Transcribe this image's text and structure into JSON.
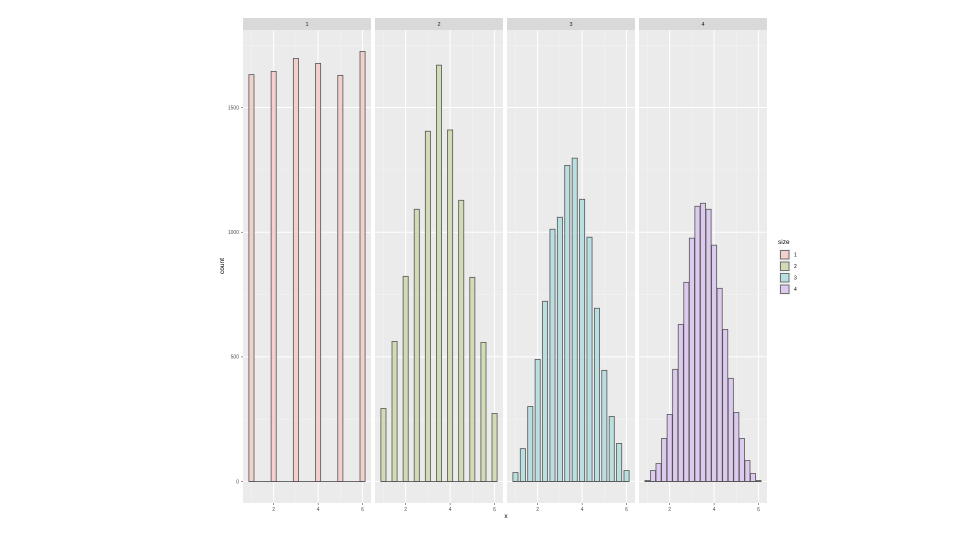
{
  "chart_data": {
    "type": "bar",
    "subtype": "faceted histogram",
    "xlabel": "x",
    "ylabel": "count",
    "ylim": [
      -86,
      1811
    ],
    "xlim": [
      0.62,
      6.38
    ],
    "x_ticks": [
      "2",
      "4",
      "6"
    ],
    "x_tick_values": [
      2,
      4,
      6
    ],
    "y_ticks": [
      "0",
      "500",
      "1000",
      "1500"
    ],
    "y_tick_values": [
      0,
      500,
      1000,
      1500
    ],
    "grid": true,
    "legend": {
      "title": "size",
      "position": "right",
      "entries": [
        "1",
        "2",
        "3",
        "4"
      ]
    },
    "panels": [
      {
        "strip": "1",
        "color": "#F8766D",
        "fill": "#f1d0cd",
        "x": [
          1,
          2,
          3,
          4,
          5,
          6
        ],
        "counts": [
          1632,
          1645,
          1697,
          1677,
          1629,
          1725
        ]
      },
      {
        "strip": "2",
        "color": "#7CAE00",
        "fill": "#d1dcb6",
        "x": [
          1,
          1.5,
          2,
          2.5,
          3,
          3.5,
          4,
          4.5,
          5,
          5.5,
          6
        ],
        "counts": [
          293,
          562,
          823,
          1092,
          1405,
          1670,
          1410,
          1128,
          819,
          558,
          273
        ]
      },
      {
        "strip": "3",
        "color": "#00BFC4",
        "fill": "#b9dfe0",
        "x": [
          1,
          1.333,
          1.667,
          2,
          2.333,
          2.667,
          3,
          3.333,
          3.667,
          4,
          4.333,
          4.667,
          5,
          5.333,
          5.667,
          6
        ],
        "counts": [
          36,
          132,
          301,
          490,
          723,
          1012,
          1060,
          1268,
          1297,
          1132,
          980,
          695,
          446,
          261,
          153,
          44
        ]
      },
      {
        "strip": "4",
        "color": "#C77CFF",
        "fill": "#dccbee",
        "x": [
          1,
          1.25,
          1.5,
          1.75,
          2,
          2.25,
          2.5,
          2.75,
          3,
          3.25,
          3.5,
          3.75,
          4,
          4.25,
          4.5,
          4.75,
          5,
          5.25,
          5.5,
          5.75,
          6
        ],
        "counts": [
          4,
          44,
          72,
          173,
          269,
          450,
          630,
          799,
          976,
          1104,
          1116,
          1092,
          948,
          775,
          610,
          414,
          277,
          173,
          84,
          32,
          4
        ]
      }
    ]
  }
}
